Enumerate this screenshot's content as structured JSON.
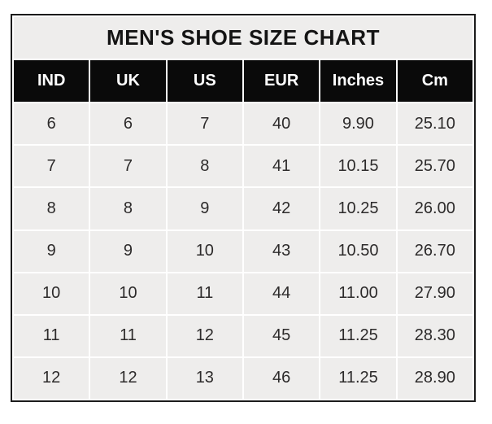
{
  "page": {
    "background": "#ffffff"
  },
  "chart_data": {
    "type": "table",
    "title": "MEN'S SHOE SIZE CHART",
    "columns": [
      "IND",
      "UK",
      "US",
      "EUR",
      "Inches",
      "Cm"
    ],
    "rows": [
      [
        "6",
        "6",
        "7",
        "40",
        "9.90",
        "25.10"
      ],
      [
        "7",
        "7",
        "8",
        "41",
        "10.15",
        "25.70"
      ],
      [
        "8",
        "8",
        "9",
        "42",
        "10.25",
        "26.00"
      ],
      [
        "9",
        "9",
        "10",
        "43",
        "10.50",
        "26.70"
      ],
      [
        "10",
        "10",
        "11",
        "44",
        "11.00",
        "27.90"
      ],
      [
        "11",
        "11",
        "12",
        "45",
        "11.25",
        "28.30"
      ],
      [
        "12",
        "12",
        "13",
        "46",
        "11.25",
        "28.90"
      ]
    ],
    "layout": {
      "legend": "none",
      "grid": "white gridlines between cells",
      "header_style": "white bold text on black",
      "title_position": "top row spanning all columns"
    }
  },
  "colors": {
    "frame_border": "#1b1b1b",
    "title_bg": "#eeedec",
    "title_text": "#141414",
    "header_bg": "#0a0a0a",
    "header_text": "#ffffff",
    "cell_bg": "#eeedec",
    "cell_text": "#2d2b2b",
    "gridline": "#ffffff"
  }
}
